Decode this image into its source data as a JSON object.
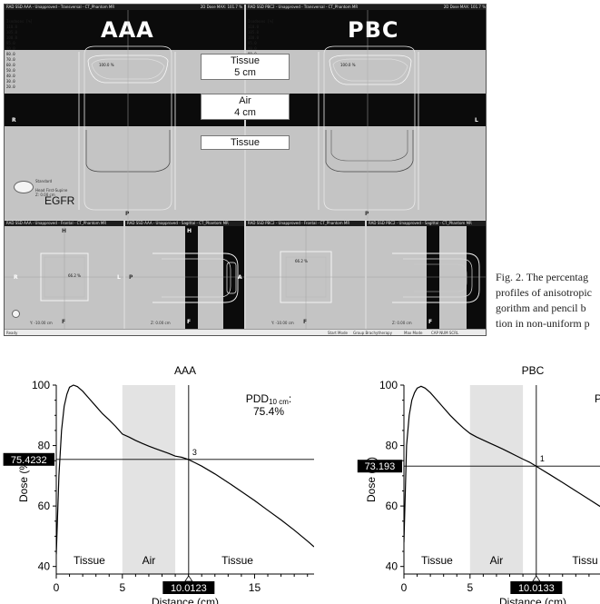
{
  "tps": {
    "left_label": "AAA",
    "right_label": "PBC",
    "titlebar_left": "RAD SSD AAA - Unapproved - Transversal - CT_Phantom MR",
    "titlebar_left_right": "2D Dose MAX: 101.7 %",
    "titlebar_right": "RAD SSD PBC2 - Unapproved - Transversal - CT_Phantom MR",
    "titlebar_right_right": "2D Dose MAX: 101.7 %",
    "isodose_header": "Isodoses [%]",
    "isodose_levels": [
      "110.0",
      "105.0",
      "100.0",
      "95.0",
      "90.0",
      "80.0",
      "70.0",
      "60.0",
      "50.0",
      "40.0",
      "30.0",
      "20.0"
    ],
    "media": [
      {
        "name": "Tissue",
        "thickness": "5 cm"
      },
      {
        "name": "Air",
        "thickness": "4 cm"
      },
      {
        "name": "Tissue",
        "thickness": ""
      }
    ],
    "dose_label_top": "100.0 %",
    "dose_label_small": "66.2 %",
    "orientation": {
      "right": "R",
      "left": "L",
      "posterior": "P",
      "anterior": "A",
      "head": "H",
      "feet": "F"
    },
    "standard_label": "Standard",
    "head_first": "Head First-Supine",
    "z_left": "Z: 0.00 cm",
    "y_val": "Y: -10.00 cm",
    "egfr": "EGFR",
    "bottom_titles": [
      "RAD SSD AAA - Unapproved - Frontal - CT_Phantom MR",
      "RAD SSD AAA - Unapproved - Sagittal - CT_Phantom MR",
      "RAD SSD PBC2 - Unapproved - Frontal - CT_Phantom MR",
      "RAD SSD PBC2 - Unapproved - Sagittal - CT_Phantom MR"
    ],
    "status": [
      "Ready",
      "Start Mode",
      "Group Brachytherapy",
      "Max Mode",
      "CAP  NUM  SCRL"
    ]
  },
  "caption": {
    "lines": [
      "Fig. 2. The percentag",
      "profiles of anisotropic",
      "gorithm and pencil b",
      "tion in non-uniform p"
    ]
  },
  "chart_data": [
    {
      "type": "line",
      "title": "AAA",
      "xlabel": "Distance (cm)",
      "ylabel": "Dose (%)",
      "xlim": [
        0,
        19.5
      ],
      "ylim": [
        37.5,
        100
      ],
      "xticks": [
        0,
        5,
        10,
        15
      ],
      "yticks": [
        40,
        60,
        80,
        100
      ],
      "regions": [
        {
          "label": "Tissue",
          "from": 0,
          "to": 5
        },
        {
          "label": "Air",
          "from": 5,
          "to": 9
        },
        {
          "label": "Tissue",
          "from": 9,
          "to": 19.5
        }
      ],
      "annotation": {
        "prefix": "PDD",
        "subscript": "10 cm",
        "suffix": ":",
        "value": "75.4%"
      },
      "cursor_x_label": "10.0123",
      "cursor_y_label": "75.4232",
      "marker_label": "3",
      "series": [
        {
          "x": [
            0,
            0.2,
            0.4,
            0.6,
            0.8,
            1.0,
            1.3,
            1.6,
            2.0,
            2.5,
            3.0,
            3.5,
            4.0,
            4.5,
            5.0,
            5.5,
            6.0,
            6.5,
            7.0,
            7.5,
            8.0,
            8.5,
            9.0,
            9.5,
            10.0,
            10.5,
            11.0,
            12.0,
            13.0,
            14.0,
            15.0,
            16.0,
            17.0,
            18.0,
            19.0,
            19.5
          ],
          "y": [
            44,
            70,
            85,
            93,
            97,
            99.3,
            100,
            99.5,
            98,
            95.5,
            93,
            90.5,
            88.5,
            86.3,
            83.8,
            82.8,
            81.7,
            80.7,
            79.8,
            79.0,
            78.2,
            77.4,
            76.5,
            76.1,
            75.4,
            74.3,
            73.2,
            70.6,
            67.8,
            64.8,
            61.8,
            58.6,
            55.4,
            52.0,
            48.4,
            46.5
          ]
        }
      ]
    },
    {
      "type": "line",
      "title": "PBC",
      "xlabel": "Distance (cm)",
      "ylabel": "Dose (%)",
      "xlim": [
        0,
        19.5
      ],
      "ylim": [
        37.5,
        100
      ],
      "xticks": [
        0,
        5,
        10
      ],
      "yticks": [
        40,
        60,
        80,
        100
      ],
      "regions": [
        {
          "label": "Tissue",
          "from": 0,
          "to": 5
        },
        {
          "label": "Air",
          "from": 5,
          "to": 9
        },
        {
          "label": "Tissu",
          "from": 9,
          "to": 19.5
        }
      ],
      "annotation": {
        "prefix": "P",
        "subscript": "",
        "suffix": "",
        "value": ""
      },
      "cursor_x_label": "10.0133",
      "cursor_y_label": "73.193",
      "marker_label": "1",
      "series": [
        {
          "x": [
            0,
            0.2,
            0.4,
            0.6,
            0.8,
            1.0,
            1.3,
            1.6,
            2.0,
            2.5,
            3.0,
            3.5,
            4.0,
            4.5,
            5.0,
            5.5,
            6.0,
            6.5,
            7.0,
            7.5,
            8.0,
            8.5,
            9.0,
            9.5,
            10.0,
            10.5,
            11.0,
            12.0,
            13.0,
            14.0,
            15.0,
            16.0,
            17.0,
            18.0,
            19.0,
            19.5
          ],
          "y": [
            48,
            80,
            90,
            95,
            97.5,
            99,
            99.6,
            99.0,
            97.5,
            95.0,
            92.5,
            90.0,
            87.8,
            85.8,
            84.0,
            82.8,
            81.8,
            80.8,
            79.8,
            78.8,
            77.7,
            76.6,
            75.5,
            74.5,
            73.2,
            71.8,
            70.5,
            67.8,
            65.0,
            62.2,
            59.4,
            56.6,
            53.8,
            51.0,
            48.2,
            46.8
          ]
        }
      ]
    }
  ]
}
